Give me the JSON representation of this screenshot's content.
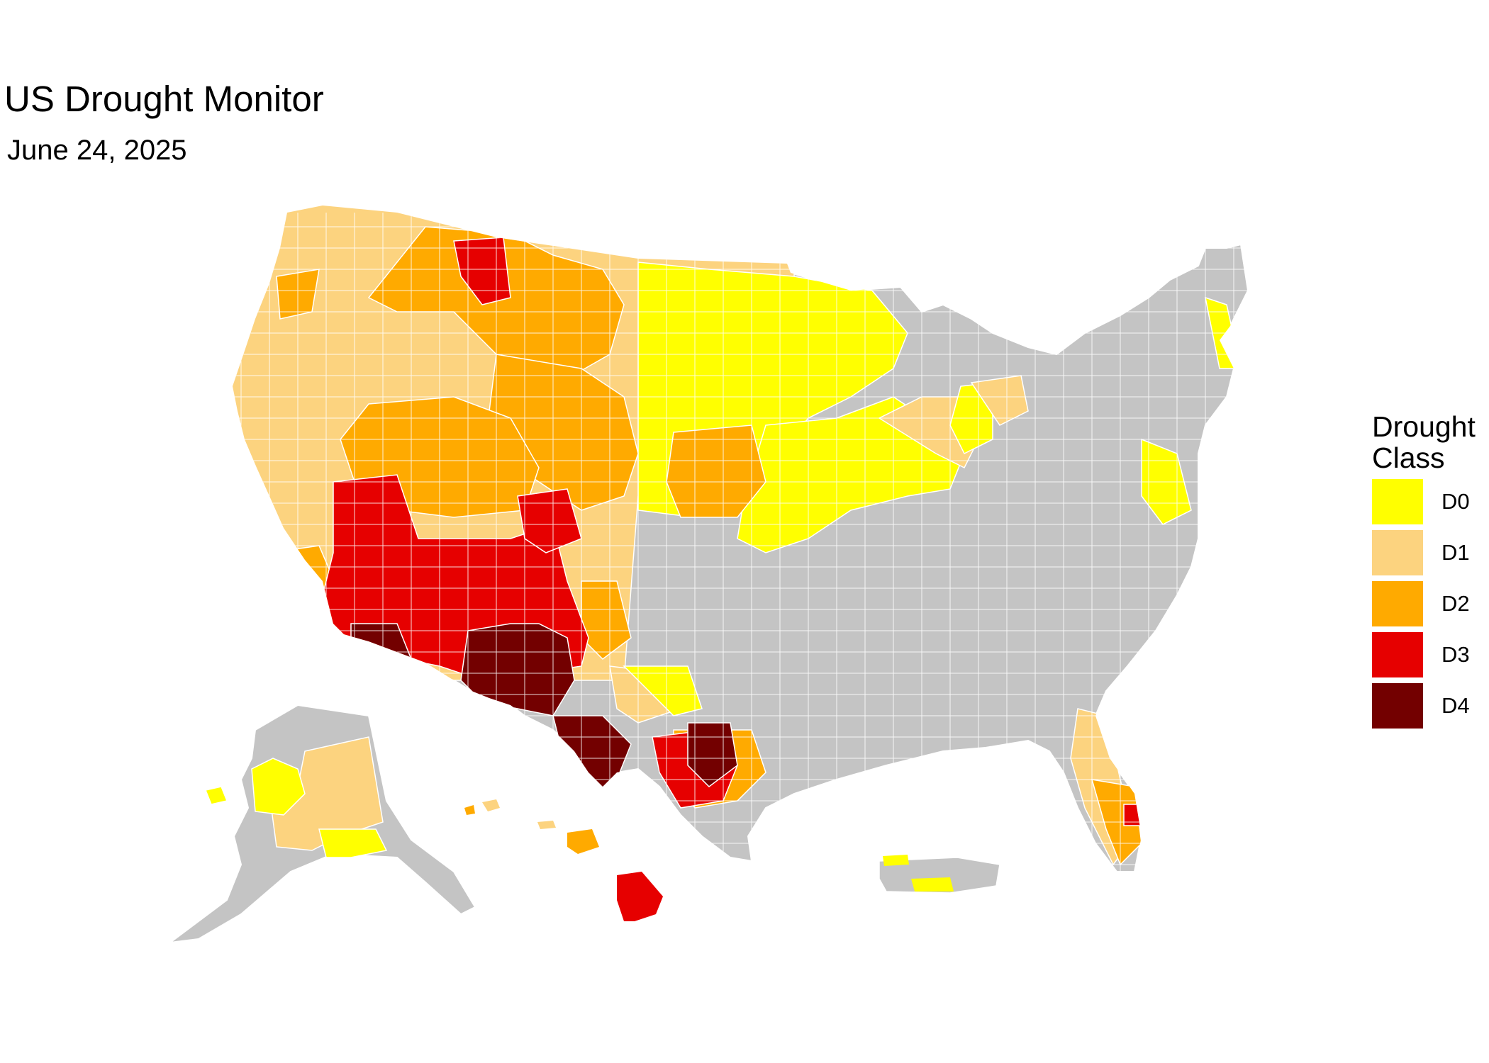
{
  "title": "US Drought Monitor",
  "subtitle": "June 24, 2025",
  "legend": {
    "title": "Drought Class",
    "items": [
      {
        "label": "D0",
        "color": "#FFFF00"
      },
      {
        "label": "D1",
        "color": "#FCD37F"
      },
      {
        "label": "D2",
        "color": "#FFAA00"
      },
      {
        "label": "D3",
        "color": "#E60000"
      },
      {
        "label": "D4",
        "color": "#730000"
      }
    ]
  },
  "colors": {
    "no_drought": "#C4C4C4",
    "border": "#FFFFFF"
  }
}
